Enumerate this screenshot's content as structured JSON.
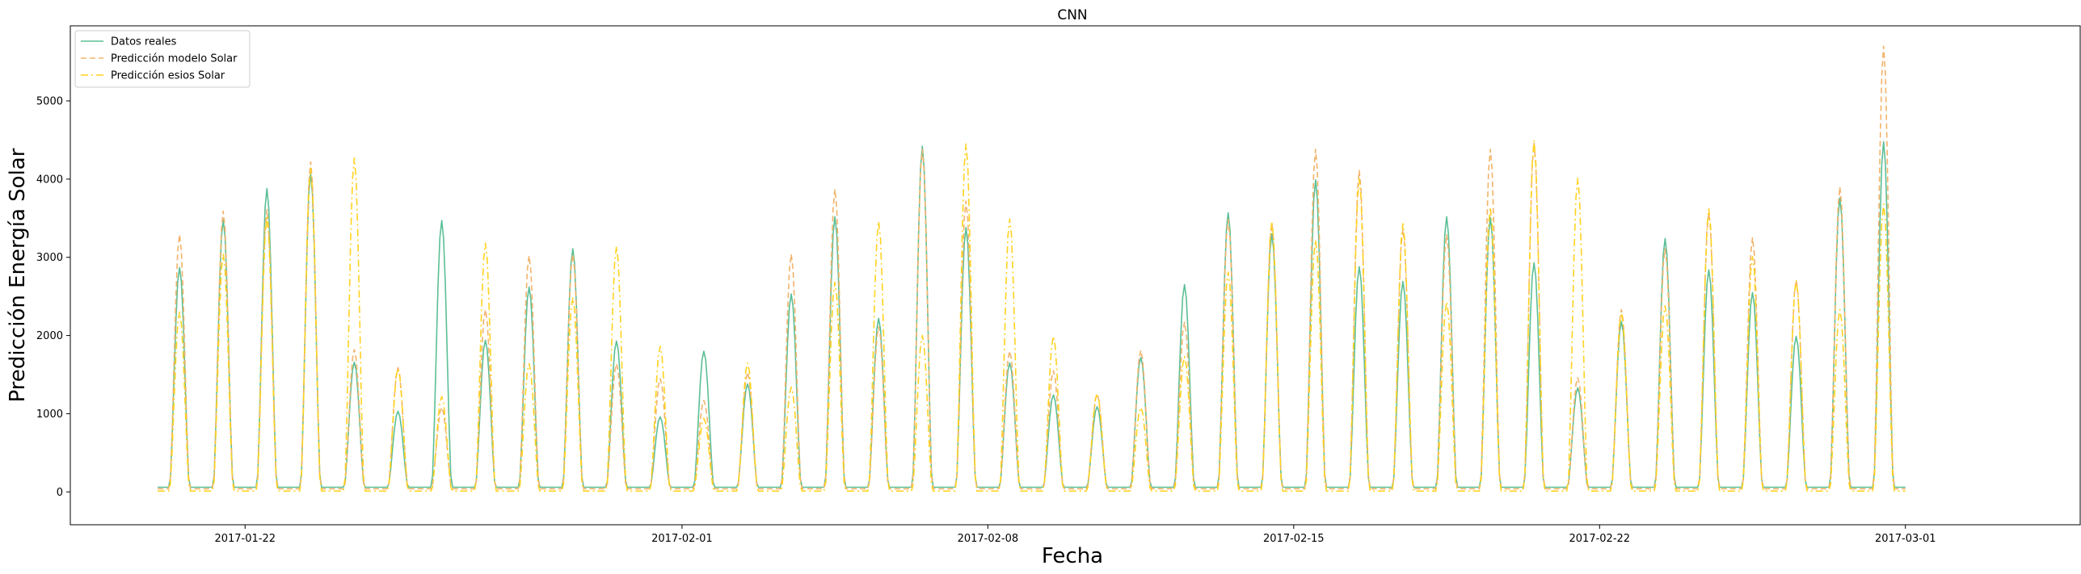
{
  "chart_data": {
    "type": "line",
    "title": "CNN",
    "xlabel": "Fecha",
    "ylabel": "Predicción Energía Solar",
    "xlim": [
      "2017-01-18T00:00",
      "2017-03-05T00:00"
    ],
    "ylim": [
      -420,
      5960
    ],
    "x_ticks": [
      "2017-01-22",
      "2017-02-01",
      "2017-02-08",
      "2017-02-15",
      "2017-02-22",
      "2017-03-01"
    ],
    "y_ticks": [
      0,
      1000,
      2000,
      3000,
      4000,
      5000
    ],
    "grid": false,
    "legend_position": "top-left",
    "start_date": "2017-01-20",
    "day_peak_hour": 12,
    "series": [
      {
        "name": "Datos reales",
        "color": "#5bbf96",
        "style": "solid",
        "night_value": 60,
        "daily_peaks": [
          2870,
          3480,
          3880,
          4070,
          1660,
          1030,
          3470,
          1940,
          2620,
          3110,
          1930,
          960,
          1800,
          1380,
          2530,
          3520,
          2220,
          4420,
          3380,
          1650,
          1240,
          1090,
          1720,
          2650,
          3570,
          3300,
          3990,
          2880,
          2690,
          3520,
          3510,
          2930,
          1330,
          2180,
          3240,
          2840,
          2550,
          1990,
          3760,
          4480
        ]
      },
      {
        "name": "Predicción modelo Solar",
        "color": "#f2b36b",
        "style": "dashed",
        "night_value": 40,
        "daily_peaks": [
          3290,
          3590,
          3610,
          4220,
          1820,
          1590,
          1080,
          2330,
          3020,
          3040,
          1640,
          1450,
          1170,
          1530,
          3040,
          3870,
          2110,
          4380,
          3720,
          1800,
          1550,
          1250,
          1810,
          2170,
          3480,
          3430,
          4380,
          4110,
          3360,
          3290,
          4380,
          4460,
          1460,
          2330,
          3110,
          3570,
          3250,
          2710,
          3900,
          5700
        ]
      },
      {
        "name": "Predicción esios Solar",
        "color": "#ffd21f",
        "style": "dashdot",
        "night_value": 10,
        "daily_peaks": [
          2300,
          3040,
          3510,
          4140,
          4270,
          1580,
          1220,
          3180,
          1640,
          2480,
          3140,
          1860,
          940,
          1650,
          1340,
          2680,
          3460,
          2000,
          4450,
          3490,
          1990,
          1260,
          1080,
          1730,
          2810,
          3460,
          3220,
          4000,
          3430,
          2430,
          3640,
          4490,
          4010,
          2290,
          2380,
          3620,
          3010,
          2700,
          2330,
          3680
        ]
      }
    ]
  }
}
